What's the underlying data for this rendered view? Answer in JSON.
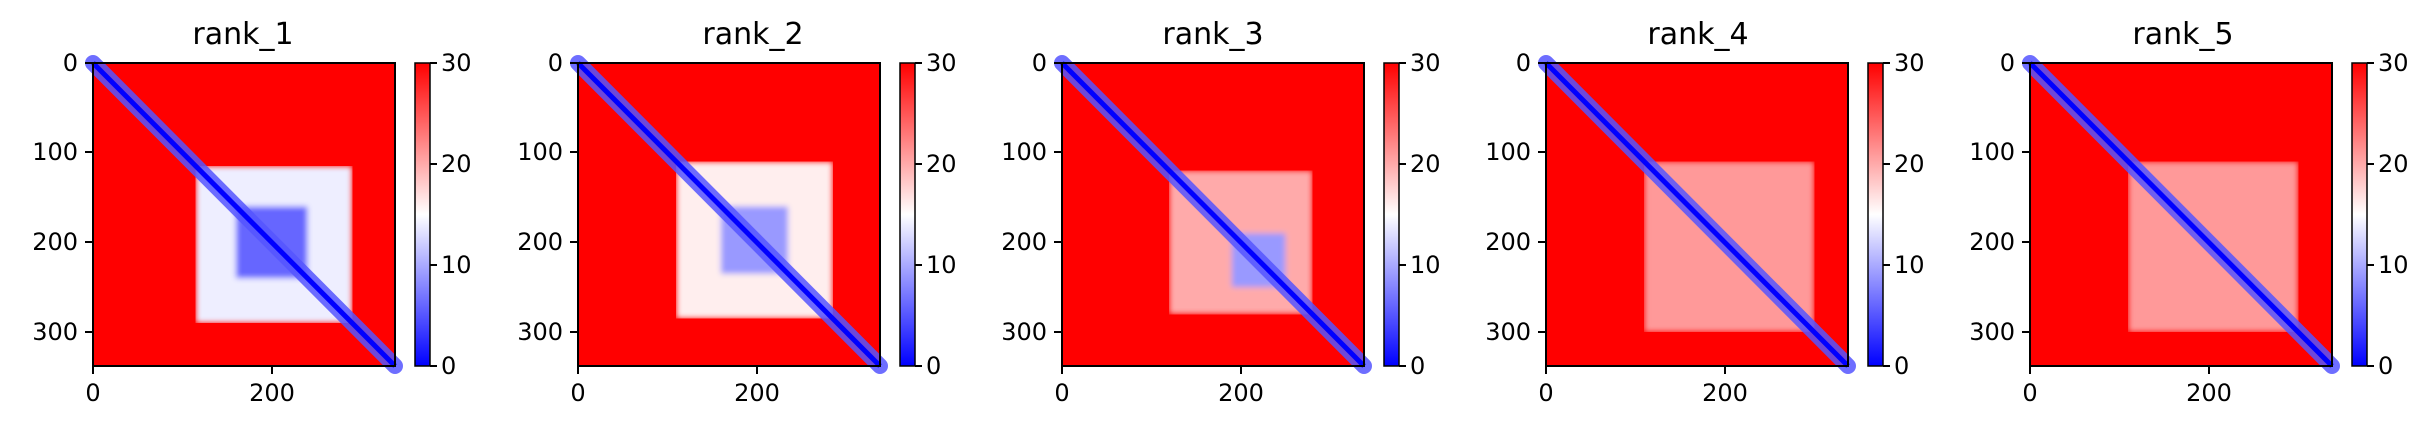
{
  "chart_data": [
    {
      "type": "heatmap",
      "title": "rank_1",
      "x_ticks": [
        "0",
        "200"
      ],
      "y_ticks": [
        "0",
        "100",
        "200",
        "300"
      ],
      "colorbar_ticks": [
        "0",
        "10",
        "20",
        "30"
      ],
      "colorbar_range": [
        0,
        30
      ],
      "matrix_size": 338,
      "cmap": "bwr",
      "diagonal_value": 0,
      "background_value": 30,
      "blocks": [
        {
          "start": 115,
          "end": 290,
          "value": 14
        },
        {
          "start": 160,
          "end": 240,
          "value": 6
        }
      ]
    },
    {
      "type": "heatmap",
      "title": "rank_2",
      "x_ticks": [
        "0",
        "200"
      ],
      "y_ticks": [
        "0",
        "100",
        "200",
        "300"
      ],
      "colorbar_ticks": [
        "0",
        "10",
        "20",
        "30"
      ],
      "colorbar_range": [
        0,
        30
      ],
      "matrix_size": 338,
      "cmap": "bwr",
      "diagonal_value": 0,
      "background_value": 30,
      "blocks": [
        {
          "start": 110,
          "end": 285,
          "value": 16
        },
        {
          "start": 160,
          "end": 235,
          "value": 9
        }
      ]
    },
    {
      "type": "heatmap",
      "title": "rank_3",
      "x_ticks": [
        "0",
        "200"
      ],
      "y_ticks": [
        "0",
        "100",
        "200",
        "300"
      ],
      "colorbar_ticks": [
        "0",
        "10",
        "20",
        "30"
      ],
      "colorbar_range": [
        0,
        30
      ],
      "matrix_size": 338,
      "cmap": "bwr",
      "diagonal_value": 0,
      "background_value": 30,
      "blocks": [
        {
          "start": 120,
          "end": 280,
          "value": 20
        },
        {
          "start": 190,
          "end": 250,
          "value": 9
        }
      ]
    },
    {
      "type": "heatmap",
      "title": "rank_4",
      "x_ticks": [
        "0",
        "200"
      ],
      "y_ticks": [
        "0",
        "100",
        "200",
        "300"
      ],
      "colorbar_ticks": [
        "0",
        "10",
        "20",
        "30"
      ],
      "colorbar_range": [
        0,
        30
      ],
      "matrix_size": 338,
      "cmap": "bwr",
      "diagonal_value": 0,
      "background_value": 30,
      "blocks": [
        {
          "start": 110,
          "end": 300,
          "value": 21
        }
      ]
    },
    {
      "type": "heatmap",
      "title": "rank_5",
      "x_ticks": [
        "0",
        "200"
      ],
      "y_ticks": [
        "0",
        "100",
        "200",
        "300"
      ],
      "colorbar_ticks": [
        "0",
        "10",
        "20",
        "30"
      ],
      "colorbar_range": [
        0,
        30
      ],
      "matrix_size": 338,
      "cmap": "bwr",
      "diagonal_value": 0,
      "background_value": 30,
      "blocks": [
        {
          "start": 110,
          "end": 300,
          "value": 21
        }
      ]
    }
  ]
}
